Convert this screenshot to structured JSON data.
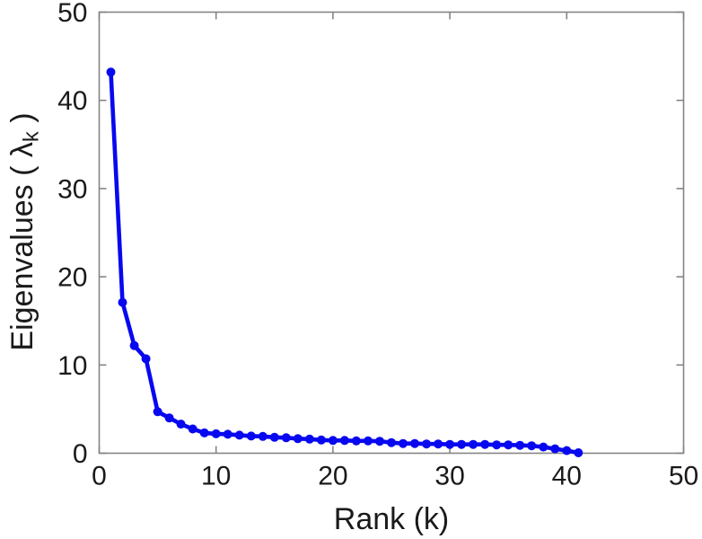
{
  "figure": {
    "background": "#ffffff"
  },
  "chart_data": {
    "type": "line",
    "title": "",
    "xlabel": "Rank (k)",
    "ylabel": {
      "text": "Eigenvalues ( λk )",
      "prefix": "Eigenvalues ( ",
      "symbol": "λ",
      "subscript": "k",
      "suffix": " )"
    },
    "xlim": [
      0,
      50
    ],
    "ylim": [
      0,
      50
    ],
    "xticks": [
      0,
      10,
      20,
      30,
      40,
      50
    ],
    "yticks": [
      0,
      10,
      20,
      30,
      40,
      50
    ],
    "grid": false,
    "box": true,
    "legend": null,
    "axis_color": "#858585",
    "text_color": "#1a1a1a",
    "x": [
      1,
      2,
      3,
      4,
      5,
      6,
      7,
      8,
      9,
      10,
      11,
      12,
      13,
      14,
      15,
      16,
      17,
      18,
      19,
      20,
      21,
      22,
      23,
      24,
      25,
      26,
      27,
      28,
      29,
      30,
      31,
      32,
      33,
      34,
      35,
      36,
      37,
      38,
      39,
      40,
      41
    ],
    "series": [
      {
        "name": "eigenvalues",
        "color": "#0808F0",
        "marker": "circle",
        "values": [
          43.2,
          17.1,
          12.2,
          10.7,
          4.7,
          4.0,
          3.3,
          2.75,
          2.3,
          2.2,
          2.15,
          2.05,
          1.95,
          1.9,
          1.8,
          1.75,
          1.65,
          1.6,
          1.5,
          1.45,
          1.45,
          1.4,
          1.4,
          1.35,
          1.2,
          1.1,
          1.1,
          1.05,
          1.05,
          1.0,
          1.0,
          1.0,
          1.0,
          0.95,
          0.95,
          0.9,
          0.85,
          0.7,
          0.5,
          0.3,
          0.05
        ]
      }
    ]
  }
}
